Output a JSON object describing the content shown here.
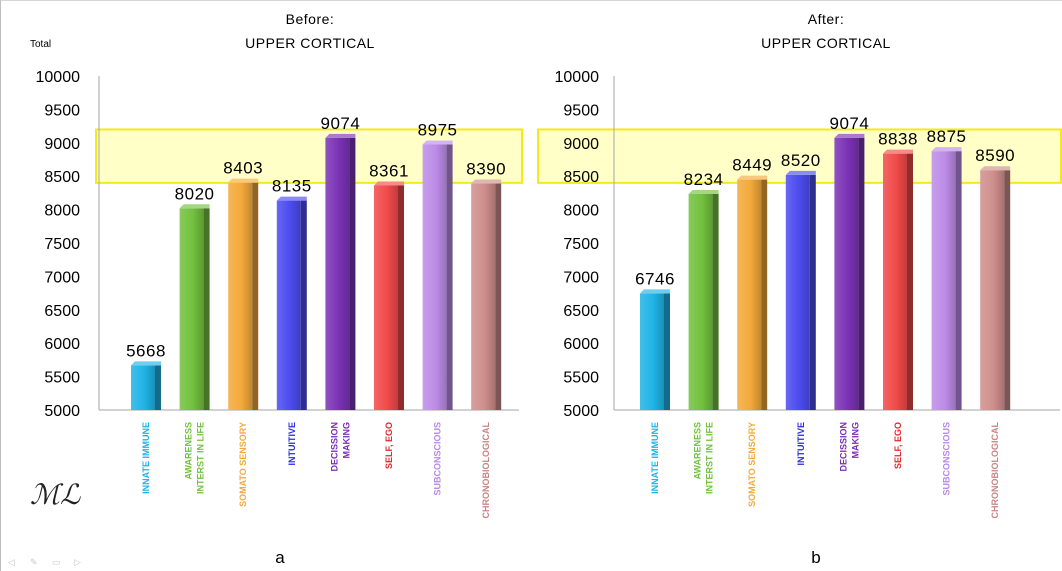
{
  "total_label": "Total",
  "signature": "ML",
  "nav_icons": [
    "arrow-left-icon",
    "pen-icon",
    "menu-icon",
    "arrow-right-icon"
  ],
  "highlight_color": "#ffff99",
  "colors": [
    "#1fb4e6",
    "#73c13f",
    "#f4a93b",
    "#4c4cf0",
    "#7b33b6",
    "#f24a4a",
    "#bd8ce8",
    "#cf8f8c"
  ],
  "label_colors": [
    "#1cb3e6",
    "#73c13f",
    "#f4a93b",
    "#2d2de0",
    "#7a2fb3",
    "#e0282d",
    "#b98ae6",
    "#c98484"
  ],
  "chart_data": [
    {
      "type": "bar",
      "title_line1": "Before:",
      "title_line2": "UPPER CORTICAL",
      "panel_label": "a",
      "categories": [
        [
          "INNATE IMMUNE"
        ],
        [
          "AWARENESS",
          "INTERST IN LIFE"
        ],
        [
          "SOMATO SENSORY"
        ],
        [
          "INTUITIVE"
        ],
        [
          "DECISSION",
          "MAKING"
        ],
        [
          "SELF, EGO"
        ],
        [
          "SUBCONSCIOUS"
        ],
        [
          "CHRONOBIOLOGICAL"
        ]
      ],
      "values": [
        5668,
        8020,
        8403,
        8135,
        9074,
        8361,
        8975,
        8390
      ],
      "yticks": [
        5000,
        5500,
        6000,
        6500,
        7000,
        7500,
        8000,
        8500,
        9000,
        9500,
        10000
      ],
      "ylim": [
        5000,
        10000
      ],
      "highlight_band": [
        8400,
        9200
      ]
    },
    {
      "type": "bar",
      "title_line1": "After:",
      "title_line2": "UPPER CORTICAL",
      "panel_label": "b",
      "categories": [
        [
          "INNATE IMMUNE"
        ],
        [
          "AWARENESS",
          "INTERST IN LIFE"
        ],
        [
          "SOMATO SENSORY"
        ],
        [
          "INTUITIVE"
        ],
        [
          "DECISSION",
          "MAKING"
        ],
        [
          "SELF, EGO"
        ],
        [
          "SUBCONSCIOUS"
        ],
        [
          "CHRONOBIOLOGICAL"
        ]
      ],
      "values": [
        6746,
        8234,
        8449,
        8520,
        9074,
        8838,
        8875,
        8590
      ],
      "yticks": [
        5000,
        5500,
        6000,
        6500,
        7000,
        7500,
        8000,
        8500,
        9000,
        9500,
        10000
      ],
      "ylim": [
        5000,
        10000
      ],
      "highlight_band": [
        8400,
        9200
      ]
    }
  ]
}
